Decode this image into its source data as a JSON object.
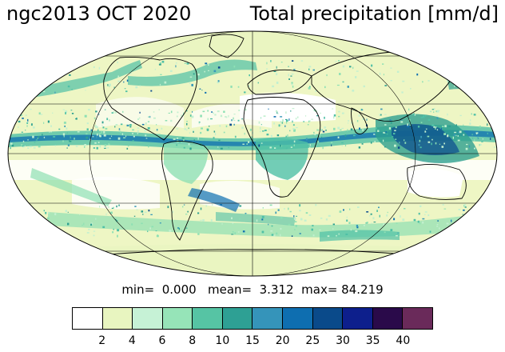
{
  "title_left": "ngc2013 OCT 2020",
  "title_right": "Total precipitation [mm/d]",
  "stats": {
    "min_label": "min=",
    "min_value": "0.000",
    "mean_label": "mean=",
    "mean_value": "3.312",
    "max_label": "max=",
    "max_value": "84.219"
  },
  "map": {
    "projection": "mollweide",
    "background_color": "#eef6c4",
    "colors": {
      "light": "#e8f5c0",
      "mint": "#c3f0d0",
      "green": "#8ee0b4",
      "teal": "#4fc0a6",
      "teal_dark": "#2ea090",
      "blue_green": "#3a9ab8",
      "blue": "#0e6fb0",
      "navy": "#0a4a8e",
      "dark_blue": "#0c1f8a",
      "coast": "#000000"
    }
  },
  "colorbar": {
    "colors": [
      "#ffffff",
      "#e8f5c0",
      "#c6f2d6",
      "#96e4b8",
      "#56c4a4",
      "#2ea094",
      "#3594ba",
      "#0e6eb0",
      "#0a4a8a",
      "#0d1f8c",
      "#2a0a4a",
      "#6a2a5a"
    ],
    "tick_labels": [
      "2",
      "4",
      "6",
      "8",
      "10",
      "15",
      "20",
      "25",
      "30",
      "35",
      "40"
    ]
  }
}
